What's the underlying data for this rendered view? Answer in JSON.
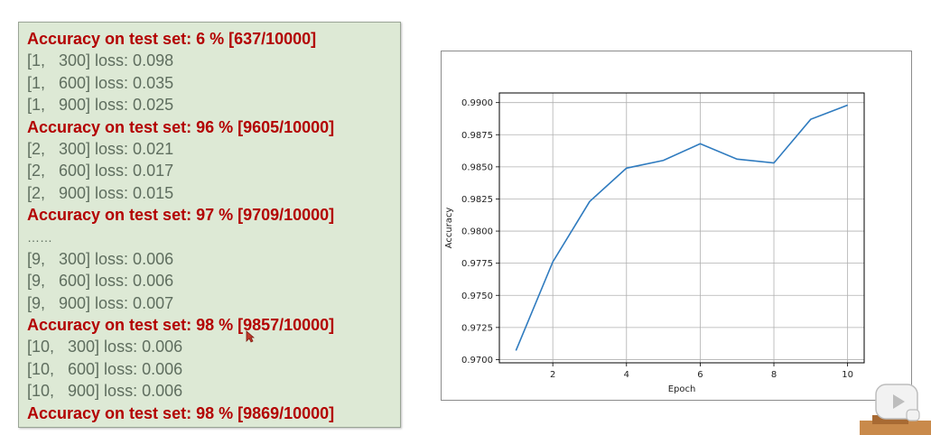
{
  "log": {
    "lines": [
      {
        "kind": "acc",
        "text": "Accuracy on test set: 6 % [637/10000]"
      },
      {
        "kind": "loss",
        "text": "[1,   300] loss: 0.098"
      },
      {
        "kind": "loss",
        "text": "[1,   600] loss: 0.035"
      },
      {
        "kind": "loss",
        "text": "[1,   900] loss: 0.025"
      },
      {
        "kind": "acc",
        "text": "Accuracy on test set: 96 % [9605/10000]"
      },
      {
        "kind": "loss",
        "text": "[2,   300] loss: 0.021"
      },
      {
        "kind": "loss",
        "text": "[2,   600] loss: 0.017"
      },
      {
        "kind": "loss",
        "text": "[2,   900] loss: 0.015"
      },
      {
        "kind": "acc",
        "text": "Accuracy on test set: 97 % [9709/10000]"
      },
      {
        "kind": "ellipsis",
        "text": "……"
      },
      {
        "kind": "loss",
        "text": "[9,   300] loss: 0.006"
      },
      {
        "kind": "loss",
        "text": "[9,   600] loss: 0.006"
      },
      {
        "kind": "loss",
        "text": "[9,   900] loss: 0.007"
      },
      {
        "kind": "acc",
        "text": "Accuracy on test set: 98 % [9857/10000]"
      },
      {
        "kind": "loss",
        "text": "[10,   300] loss: 0.006"
      },
      {
        "kind": "loss",
        "text": "[10,   600] loss: 0.006"
      },
      {
        "kind": "loss",
        "text": "[10,   900] loss: 0.006"
      },
      {
        "kind": "acc",
        "text": "Accuracy on test set: 98 % [9869/10000]"
      }
    ]
  },
  "chart_data": {
    "type": "line",
    "title": "",
    "xlabel": "Epoch",
    "ylabel": "Accuracy",
    "x": [
      1,
      2,
      3,
      4,
      5,
      6,
      7,
      8,
      9,
      10
    ],
    "series": [
      {
        "values": [
          0.9707,
          0.9776,
          0.9823,
          0.9849,
          0.9855,
          0.9868,
          0.9856,
          0.9853,
          0.9887,
          0.9898
        ]
      }
    ],
    "xticks": [
      "2",
      "4",
      "6",
      "8",
      "10"
    ],
    "yticks": [
      "0.9700",
      "0.9725",
      "0.9750",
      "0.9775",
      "0.9800",
      "0.9825",
      "0.9850",
      "0.9875",
      "0.9900"
    ],
    "xlim": [
      0.55,
      10.45
    ],
    "ylim": [
      0.96975,
      0.99075
    ],
    "grid": true,
    "line_color": "#2f7bbf"
  },
  "colors": {
    "panel_bg": "#dde9d5",
    "accuracy_text": "#b30000",
    "loss_text": "#5f6e5f"
  }
}
